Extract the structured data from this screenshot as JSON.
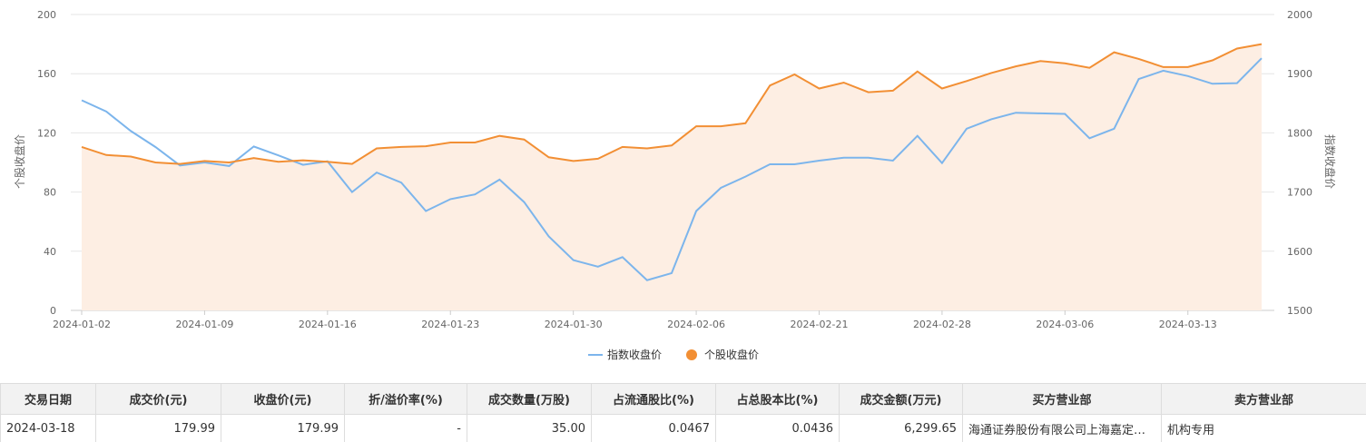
{
  "chart_data": {
    "type": "line",
    "title": "",
    "xlabel": "",
    "ylabel": "个股收盘价",
    "y2label": "指数收盘价",
    "ylim": [
      0,
      200
    ],
    "y2lim": [
      1500,
      2000
    ],
    "yticks": [
      0,
      40,
      80,
      120,
      160,
      200
    ],
    "y2ticks": [
      1500,
      1600,
      1700,
      1800,
      1900,
      2000
    ],
    "xticks": [
      "2024-01-02",
      "2024-01-09",
      "2024-01-16",
      "2024-01-23",
      "2024-01-30",
      "2024-02-06",
      "2024-02-21",
      "2024-02-28",
      "2024-03-06",
      "2024-03-13"
    ],
    "legend_position": "bottom-center",
    "grid": "horizontal",
    "colors": {
      "index": "#7cb5ec",
      "stock": "#f28f34",
      "stock_fill": "#fdeee3"
    },
    "series": [
      {
        "name": "指数收盘价",
        "axis": "right",
        "values": [
          1855,
          1836,
          1803,
          1776,
          1745,
          1750,
          1744,
          1777,
          1762,
          1746,
          1752,
          1700,
          1733,
          1716,
          1668,
          1688,
          1696,
          1721,
          1683,
          1625,
          1585,
          1574,
          1590,
          1551,
          1563,
          1668,
          1707,
          1726,
          1747,
          1747,
          1753,
          1758,
          1758,
          1753,
          1795,
          1749,
          1807,
          1823,
          1834,
          1833,
          1832,
          1791,
          1807,
          1891,
          1905,
          1896,
          1883,
          1884,
          1926
        ]
      },
      {
        "name": "个股收盘价",
        "axis": "left",
        "values": [
          110.5,
          105,
          104,
          100,
          99,
          101,
          100,
          103,
          100.5,
          101.5,
          100.5,
          99,
          109.5,
          110.5,
          111,
          113.5,
          113.5,
          118,
          115.5,
          103.5,
          101,
          102.5,
          110.5,
          109.5,
          111.5,
          124.5,
          124.5,
          126.5,
          152,
          159.5,
          150,
          154,
          147.5,
          148.5,
          161.5,
          150,
          155,
          160.5,
          165,
          168.5,
          167,
          164,
          174.5,
          170,
          164.5,
          164.5,
          169,
          177,
          179.99
        ]
      }
    ]
  },
  "table": {
    "headers": [
      "交易日期",
      "成交价(元)",
      "收盘价(元)",
      "折/溢价率(%)",
      "成交数量(万股)",
      "占流通股比(%)",
      "占总股本比(%)",
      "成交金额(万元)",
      "买方营业部",
      "卖方营业部"
    ],
    "rows": [
      [
        "2024-03-18",
        "179.99",
        "179.99",
        "-",
        "35.00",
        "0.0467",
        "0.0436",
        "6,299.65",
        "海通证券股份有限公司上海嘉定区...",
        "机构专用"
      ]
    ]
  }
}
